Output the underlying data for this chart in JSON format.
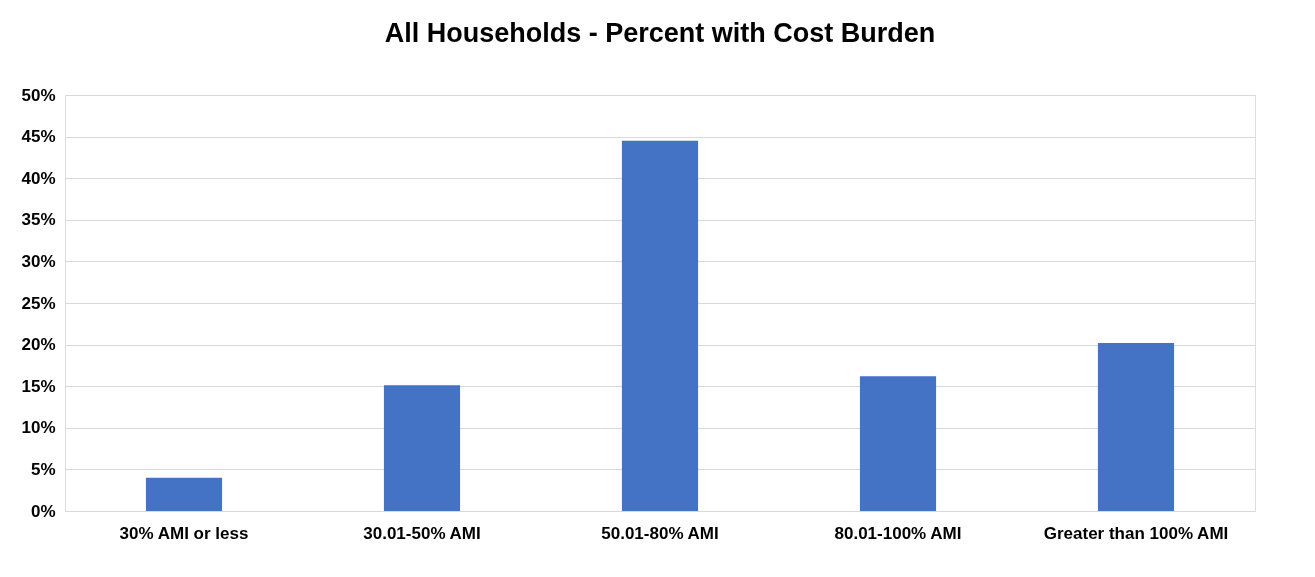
{
  "chart_data": {
    "type": "bar",
    "title": "All Households - Percent with Cost Burden",
    "categories": [
      "30% AMI or less",
      "30.01-50% AMI",
      "50.01-80% AMI",
      "80.01-100% AMI",
      "Greater than 100% AMI"
    ],
    "values": [
      4.0,
      15.1,
      44.5,
      16.2,
      20.2
    ],
    "color": "#4472c4",
    "ylim": [
      0,
      50
    ],
    "yticks": [
      {
        "value": 0,
        "label": "0%"
      },
      {
        "value": 5,
        "label": "5%"
      },
      {
        "value": 10,
        "label": "10%"
      },
      {
        "value": 15,
        "label": "15%"
      },
      {
        "value": 20,
        "label": "20%"
      },
      {
        "value": 25,
        "label": "25%"
      },
      {
        "value": 30,
        "label": "30%"
      },
      {
        "value": 35,
        "label": "35%"
      },
      {
        "value": 40,
        "label": "40%"
      },
      {
        "value": 45,
        "label": "45%"
      },
      {
        "value": 50,
        "label": "50%"
      }
    ],
    "grid": "y"
  }
}
